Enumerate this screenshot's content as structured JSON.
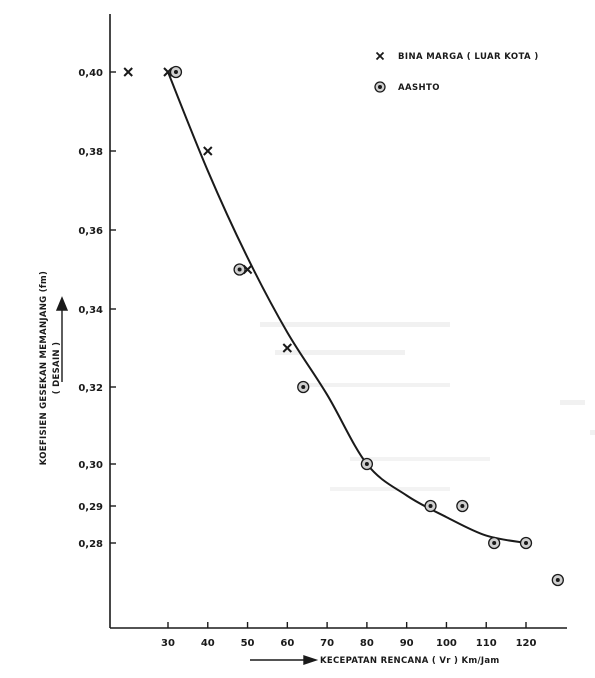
{
  "chart_data": {
    "type": "scatter",
    "title": "",
    "xlabel": "KECEPATAN RENCANA ( Vr ) Km/Jam",
    "ylabel": "KOEFISIEN GESEKAN MEMANJANG (fm)",
    "ylabel_sub": "( DESAIN )",
    "x_ticks": [
      "30",
      "40",
      "50",
      "60",
      "70",
      "80",
      "90",
      "100",
      "110",
      "120"
    ],
    "y_ticks": [
      "0,40",
      "0,38",
      "0,36",
      "0,34",
      "0,32",
      "0,30",
      "0,29",
      "0,28"
    ],
    "y_tick_values": [
      0.4,
      0.38,
      0.36,
      0.34,
      0.32,
      0.3,
      0.29,
      0.28
    ],
    "grid": false,
    "legend_position": "top-right",
    "series": [
      {
        "name": "BINA MARGA ( LUAR KOTA )",
        "marker": "x",
        "points": [
          {
            "x": 20,
            "y": 0.4
          },
          {
            "x": 30,
            "y": 0.4
          },
          {
            "x": 40,
            "y": 0.38
          },
          {
            "x": 50,
            "y": 0.35
          },
          {
            "x": 60,
            "y": 0.33
          },
          {
            "x": 80,
            "y": 0.3
          }
        ]
      },
      {
        "name": "AASHTO",
        "marker": "circle",
        "points": [
          {
            "x": 32,
            "y": 0.4
          },
          {
            "x": 48,
            "y": 0.35
          },
          {
            "x": 64,
            "y": 0.32
          },
          {
            "x": 80,
            "y": 0.3
          },
          {
            "x": 96,
            "y": 0.29
          },
          {
            "x": 104,
            "y": 0.29
          },
          {
            "x": 112,
            "y": 0.28
          },
          {
            "x": 120,
            "y": 0.28
          },
          {
            "x": 128,
            "y": 0.27
          }
        ]
      }
    ],
    "curve": [
      {
        "x": 30,
        "y": 0.4
      },
      {
        "x": 40,
        "y": 0.375
      },
      {
        "x": 50,
        "y": 0.353
      },
      {
        "x": 60,
        "y": 0.334
      },
      {
        "x": 70,
        "y": 0.318
      },
      {
        "x": 80,
        "y": 0.3
      },
      {
        "x": 90,
        "y": 0.2925
      },
      {
        "x": 100,
        "y": 0.287
      },
      {
        "x": 110,
        "y": 0.282
      },
      {
        "x": 120,
        "y": 0.28
      }
    ]
  }
}
